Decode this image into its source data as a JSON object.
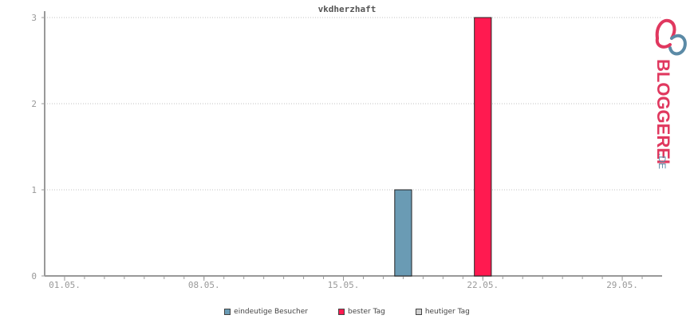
{
  "colors": {
    "unique": "#6a9bb4",
    "best": "#ff1a50",
    "today": "#d0d0d0",
    "axis": "#999999",
    "grid": "#c0c0c0",
    "tick_text": "#999999",
    "logo_red": "#e0385f",
    "logo_blue": "#5b8aa6"
  },
  "logo": {
    "text_main": "BLOGGEREI",
    "text_suffix": ".DE"
  },
  "chart_data": {
    "type": "bar",
    "title": "vkdherzhaft",
    "xlabel": "",
    "ylabel": "",
    "ylim": [
      0,
      3
    ],
    "yticks": [
      "0",
      "1",
      "2",
      "3"
    ],
    "x_tick_labels": [
      "01.05.",
      "08.05.",
      "15.05.",
      "22.05.",
      "29.05."
    ],
    "x_tick_days": [
      1,
      8,
      15,
      22,
      29
    ],
    "xlim_days": [
      0,
      31
    ],
    "grid": true,
    "legend_position": "bottom",
    "series": [
      {
        "name": "eindeutige Besucher",
        "color": "#6a9bb4",
        "points": [
          {
            "day": 18,
            "value": 1
          }
        ]
      },
      {
        "name": "bester Tag",
        "color": "#ff1a50",
        "points": [
          {
            "day": 22,
            "value": 3
          }
        ]
      },
      {
        "name": "heutiger Tag",
        "color": "#d0d0d0",
        "points": []
      }
    ]
  }
}
